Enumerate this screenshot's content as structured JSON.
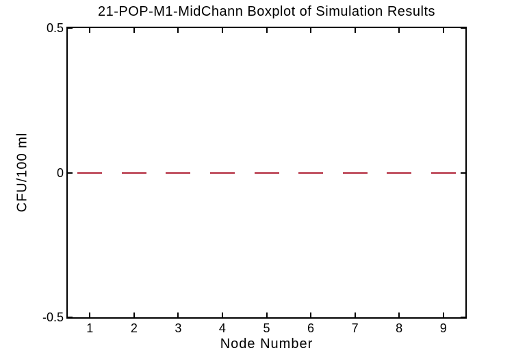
{
  "chart_data": {
    "type": "boxplot",
    "title": "21-POP-M1-MidChann Boxplot of Simulation Results",
    "xlabel": "Node Number",
    "ylabel": "CFU/100 ml",
    "categories": [
      "1",
      "2",
      "3",
      "4",
      "5",
      "6",
      "7",
      "8",
      "9"
    ],
    "series": [
      {
        "name": "median",
        "values": [
          0,
          0,
          0,
          0,
          0,
          0,
          0,
          0,
          0
        ]
      }
    ],
    "xlim": [
      0.5,
      9.5
    ],
    "ylim": [
      -0.5,
      0.5
    ],
    "ytick_values": [
      0.5,
      0,
      -0.5
    ],
    "ytick_labels": [
      "0.5",
      "0",
      "-0.5"
    ],
    "grid": false,
    "legend": "none"
  },
  "colors": {
    "median_line": "#b02437",
    "axis": "#000000",
    "background": "#ffffff",
    "text": "#000000"
  }
}
